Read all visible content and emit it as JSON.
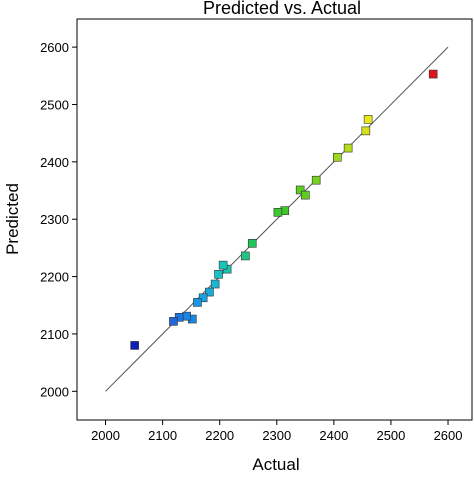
{
  "chart_data": {
    "type": "scatter",
    "title": "Predicted vs. Actual",
    "x_label": "Actual",
    "y_label": "Predicted",
    "xlim": [
      1950,
      2642
    ],
    "ylim": [
      1950,
      2649
    ],
    "xticks": [
      2000,
      2100,
      2200,
      2300,
      2400,
      2500,
      2600
    ],
    "yticks": [
      2000,
      2100,
      2200,
      2300,
      2400,
      2500,
      2600
    ],
    "diagonal": [
      2000,
      2600
    ],
    "grid": false,
    "series": [
      {
        "x": [
          2051,
          2574,
          2460,
          2456,
          2425,
          2406,
          2369,
          2341,
          2350,
          2314,
          2302,
          2257,
          2245,
          2213,
          2206,
          2198,
          2192,
          2182,
          2171,
          2161,
          2152,
          2142,
          2129,
          2119
        ],
        "values": [
          2080,
          2553,
          2474,
          2454,
          2424,
          2408,
          2368,
          2351,
          2342,
          2315,
          2312,
          2258,
          2236,
          2213,
          2220,
          2204,
          2187,
          2173,
          2163,
          2155,
          2126,
          2131,
          2129,
          2122
        ],
        "colors": [
          "#0a1fb8",
          "#e0141e",
          "#e8e81c",
          "#d8e01c",
          "#b4dc1c",
          "#9cd81e",
          "#78d21e",
          "#5ccc22",
          "#60cc22",
          "#40c82a",
          "#3cc82c",
          "#20c45a",
          "#20c484",
          "#18c4ae",
          "#18c4b8",
          "#18c0c8",
          "#18b8d4",
          "#18acdc",
          "#18a4e0",
          "#1898e4",
          "#1888e4",
          "#1c84e4",
          "#1c78e0",
          "#2068dc"
        ]
      }
    ]
  }
}
